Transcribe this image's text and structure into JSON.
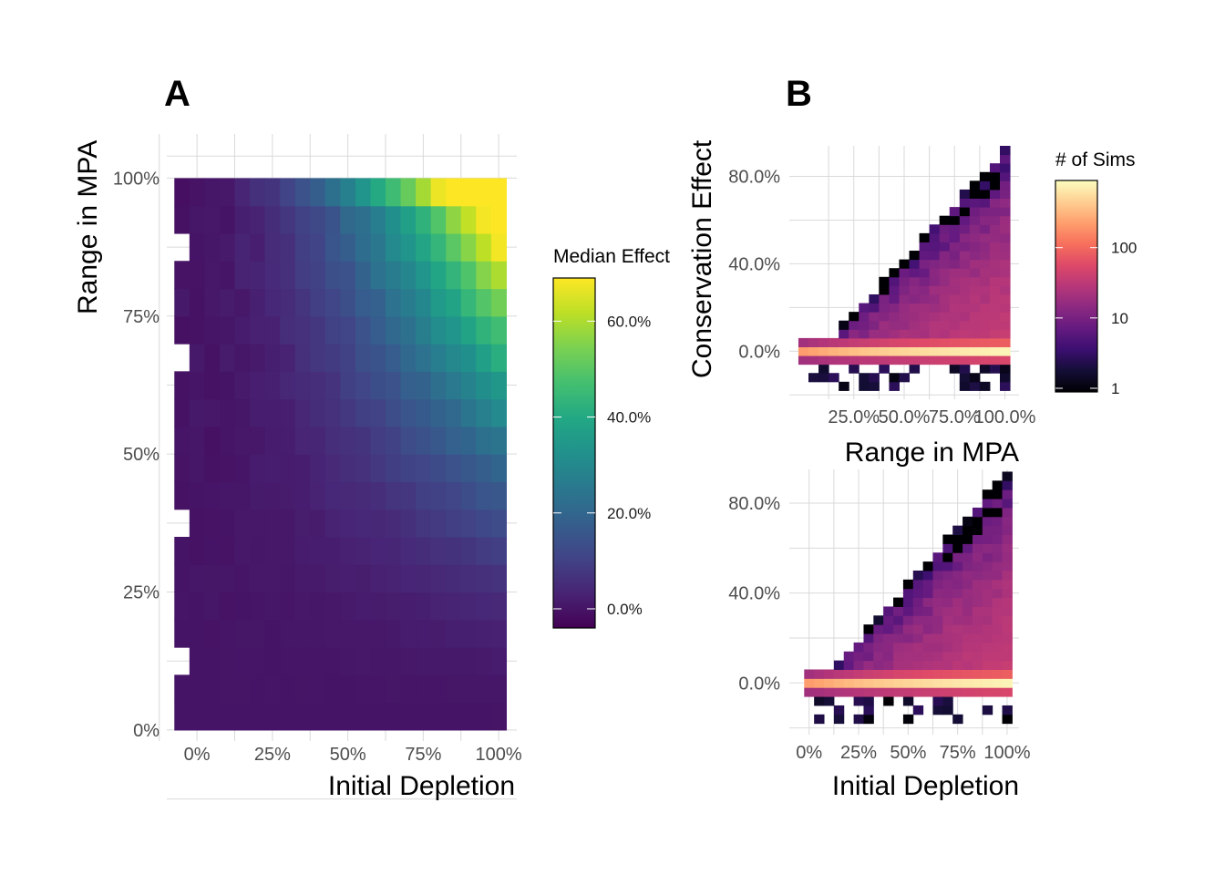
{
  "panel_labels": {
    "a": "A",
    "b": "B"
  },
  "chart_data": [
    {
      "type": "heatmap",
      "panel": "A",
      "xlabel": "Initial Depletion",
      "ylabel": "Range in MPA",
      "xticks": [
        "0%",
        "25%",
        "50%",
        "75%",
        "100%"
      ],
      "yticks": [
        "0%",
        "25%",
        "50%",
        "75%",
        "100%"
      ],
      "xlim": [
        -0.1,
        1.06
      ],
      "ylim": [
        -0.02,
        1.08
      ],
      "legend": {
        "title": "Median Effect",
        "position": "right",
        "labels": [
          "0.0%",
          "20.0%",
          "40.0%",
          "60.0%"
        ],
        "range": [
          -0.04,
          0.69
        ]
      },
      "palette": "viridis",
      "grid": true,
      "bin_size": {
        "x": 0.05,
        "y": 0.05
      },
      "values_note": "z = median conservation effect (fraction) per cell of Initial Depletion (x) by Range in MPA (y)"
    },
    {
      "type": "heatmap",
      "panel": "B-top",
      "xlabel": "Range in MPA",
      "ylabel": "Conservation Effect",
      "xticks": [
        "25.0%",
        "50.0%",
        "75.0%",
        "100.0%"
      ],
      "yticks": [
        "0.0%",
        "40.0%",
        "80.0%"
      ],
      "xlim": [
        -0.07,
        1.07
      ],
      "ylim": [
        -0.22,
        0.94
      ],
      "bin_size": {
        "x": 0.05,
        "y": 0.04
      },
      "legend": {
        "title": "# of Sims",
        "position": "right",
        "labels": [
          "1",
          "10",
          "100"
        ],
        "scale": "log10",
        "range": [
          1,
          800
        ]
      },
      "palette": "magma",
      "grid": true
    },
    {
      "type": "heatmap",
      "panel": "B-bottom",
      "xlabel": "Initial Depletion",
      "ylabel": "Conservation Effect",
      "xticks": [
        "0%",
        "25%",
        "50%",
        "75%",
        "100%"
      ],
      "yticks": [
        "0.0%",
        "40.0%",
        "80.0%"
      ],
      "xlim": [
        -0.1,
        1.06
      ],
      "ylim": [
        -0.23,
        0.95
      ],
      "bin_size": {
        "x": 0.05,
        "y": 0.04
      },
      "palette": "magma",
      "grid": true
    }
  ],
  "colors": {
    "grid": "#d9d9d9",
    "tick_text": "#4d4d4d",
    "na_background": "#ffffff"
  }
}
